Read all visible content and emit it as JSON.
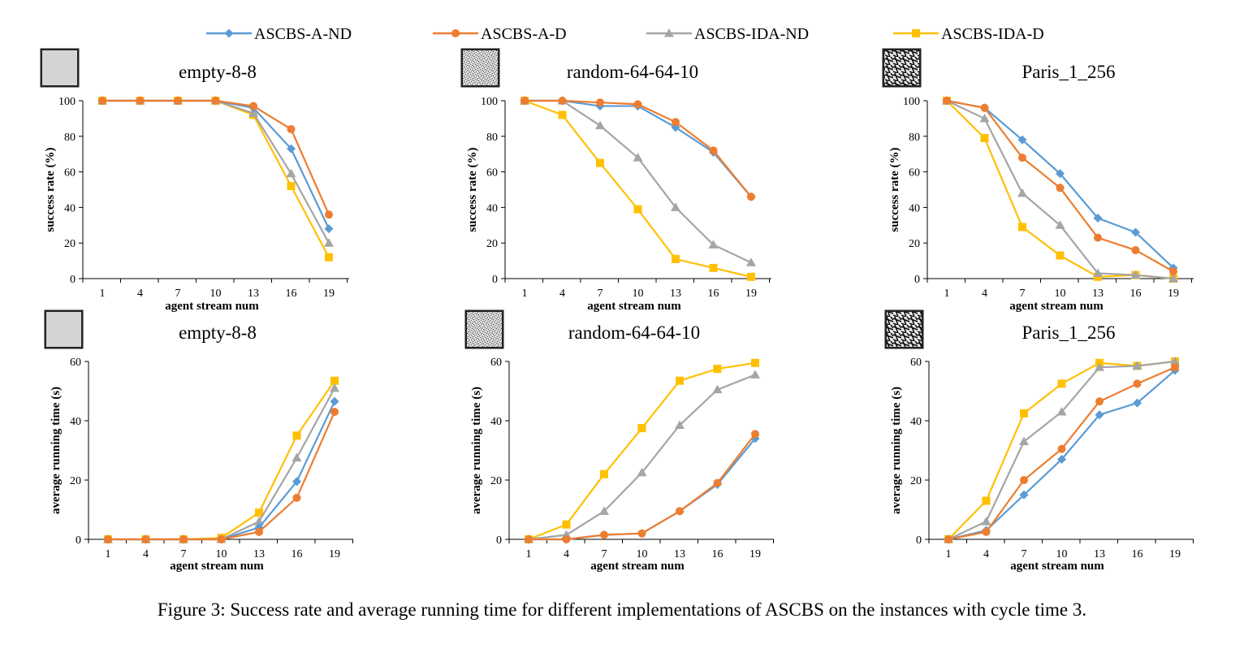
{
  "legend": {
    "items": [
      {
        "name": "ASCBS-A-ND",
        "color": "#5B9BD5",
        "marker": "diamond"
      },
      {
        "name": "ASCBS-A-D",
        "color": "#ED7D31",
        "marker": "circle"
      },
      {
        "name": "ASCBS-IDA-ND",
        "color": "#A5A5A5",
        "marker": "triangle"
      },
      {
        "name": "ASCBS-IDA-D",
        "color": "#FFC000",
        "marker": "square"
      }
    ]
  },
  "caption": "Figure 3: Success rate and average running time for different implementations of ASCBS on the instances with cycle time 3.",
  "chart_data": [
    {
      "type": "line",
      "title": "empty-8-8",
      "map_icon": "empty-map-icon",
      "xlabel": "agent stream num",
      "ylabel": "success rate (%)",
      "categories": [
        "1",
        "4",
        "7",
        "10",
        "13",
        "16",
        "19"
      ],
      "ylim": [
        0,
        100
      ],
      "yticks": [
        0,
        20,
        40,
        60,
        80,
        100
      ],
      "grid": false,
      "legend": "top",
      "series": [
        {
          "name": "ASCBS-A-ND",
          "values": [
            100,
            100,
            100,
            100,
            96,
            73,
            28
          ]
        },
        {
          "name": "ASCBS-A-D",
          "values": [
            100,
            100,
            100,
            100,
            97,
            84,
            36
          ]
        },
        {
          "name": "ASCBS-IDA-ND",
          "values": [
            100,
            100,
            100,
            100,
            93,
            59,
            20
          ]
        },
        {
          "name": "ASCBS-IDA-D",
          "values": [
            100,
            100,
            100,
            100,
            92,
            52,
            12
          ]
        }
      ]
    },
    {
      "type": "line",
      "title": "random-64-64-10",
      "map_icon": "random-map-icon",
      "xlabel": "agent stream num",
      "ylabel": "success rate (%)",
      "categories": [
        "1",
        "4",
        "7",
        "10",
        "13",
        "16",
        "19"
      ],
      "ylim": [
        0,
        100
      ],
      "yticks": [
        0,
        20,
        40,
        60,
        80,
        100
      ],
      "grid": false,
      "legend": "top",
      "series": [
        {
          "name": "ASCBS-A-ND",
          "values": [
            100,
            100,
            97,
            97,
            85,
            71,
            46
          ]
        },
        {
          "name": "ASCBS-A-D",
          "values": [
            100,
            100,
            99,
            98,
            88,
            72,
            46
          ]
        },
        {
          "name": "ASCBS-IDA-ND",
          "values": [
            100,
            100,
            86,
            68,
            40,
            19,
            9
          ]
        },
        {
          "name": "ASCBS-IDA-D",
          "values": [
            100,
            92,
            65,
            39,
            11,
            6,
            1
          ]
        }
      ]
    },
    {
      "type": "line",
      "title": "Paris_1_256",
      "map_icon": "paris-map-icon",
      "xlabel": "agent stream num",
      "ylabel": "success rate (%)",
      "categories": [
        "1",
        "4",
        "7",
        "10",
        "13",
        "16",
        "19"
      ],
      "ylim": [
        0,
        100
      ],
      "yticks": [
        0,
        20,
        40,
        60,
        80,
        100
      ],
      "grid": false,
      "legend": "top",
      "series": [
        {
          "name": "ASCBS-A-ND",
          "values": [
            100,
            96,
            78,
            59,
            34,
            26,
            6
          ]
        },
        {
          "name": "ASCBS-A-D",
          "values": [
            100,
            96,
            68,
            51,
            23,
            16,
            4
          ]
        },
        {
          "name": "ASCBS-IDA-ND",
          "values": [
            100,
            90,
            48,
            30,
            3,
            2,
            0
          ]
        },
        {
          "name": "ASCBS-IDA-D",
          "values": [
            100,
            79,
            29,
            13,
            1,
            2,
            0
          ]
        }
      ]
    },
    {
      "type": "line",
      "title": "empty-8-8",
      "map_icon": "empty-map-icon",
      "xlabel": "agent stream num",
      "ylabel": "average running time (s)",
      "categories": [
        "1",
        "4",
        "7",
        "10",
        "13",
        "16",
        "19"
      ],
      "ylim": [
        0,
        60
      ],
      "yticks": [
        0,
        20,
        40,
        60
      ],
      "grid": false,
      "legend": "top",
      "series": [
        {
          "name": "ASCBS-A-ND",
          "values": [
            0,
            0,
            0,
            0,
            4,
            19.5,
            46.5
          ]
        },
        {
          "name": "ASCBS-A-D",
          "values": [
            0,
            0,
            0,
            0,
            2.5,
            14,
            43
          ]
        },
        {
          "name": "ASCBS-IDA-ND",
          "values": [
            0,
            0,
            0,
            0,
            6,
            27.5,
            51
          ]
        },
        {
          "name": "ASCBS-IDA-D",
          "values": [
            0,
            0,
            0,
            0.5,
            9,
            35,
            53.5
          ]
        }
      ]
    },
    {
      "type": "line",
      "title": "random-64-64-10",
      "map_icon": "random-map-icon",
      "xlabel": "agent stream num",
      "ylabel": "average running time (s)",
      "categories": [
        "1",
        "4",
        "7",
        "10",
        "13",
        "16",
        "19"
      ],
      "ylim": [
        0,
        60
      ],
      "yticks": [
        0,
        20,
        40,
        60
      ],
      "grid": false,
      "legend": "top",
      "series": [
        {
          "name": "ASCBS-A-ND",
          "values": [
            0,
            0,
            1.5,
            2,
            9.5,
            18.5,
            34
          ]
        },
        {
          "name": "ASCBS-A-D",
          "values": [
            0,
            0,
            1.5,
            2,
            9.5,
            19,
            35.5
          ]
        },
        {
          "name": "ASCBS-IDA-ND",
          "values": [
            0,
            1.5,
            9.5,
            22.5,
            38.5,
            50.5,
            55.5
          ]
        },
        {
          "name": "ASCBS-IDA-D",
          "values": [
            0,
            5,
            22,
            37.5,
            53.5,
            57.5,
            59.5
          ]
        }
      ]
    },
    {
      "type": "line",
      "title": "Paris_1_256",
      "map_icon": "paris-map-icon",
      "xlabel": "agent stream num",
      "ylabel": "average running time (s)",
      "categories": [
        "1",
        "4",
        "7",
        "10",
        "13",
        "16",
        "19"
      ],
      "ylim": [
        0,
        60
      ],
      "yticks": [
        0,
        20,
        40,
        60
      ],
      "grid": false,
      "legend": "top",
      "series": [
        {
          "name": "ASCBS-A-ND",
          "values": [
            0,
            3,
            15,
            27,
            42,
            46,
            57
          ]
        },
        {
          "name": "ASCBS-A-D",
          "values": [
            0,
            2.5,
            20,
            30.5,
            46.5,
            52.5,
            58
          ]
        },
        {
          "name": "ASCBS-IDA-ND",
          "values": [
            0,
            6,
            33,
            43,
            58,
            58.5,
            60
          ]
        },
        {
          "name": "ASCBS-IDA-D",
          "values": [
            0,
            13,
            42.5,
            52.5,
            59.5,
            58.5,
            60
          ]
        }
      ]
    }
  ]
}
